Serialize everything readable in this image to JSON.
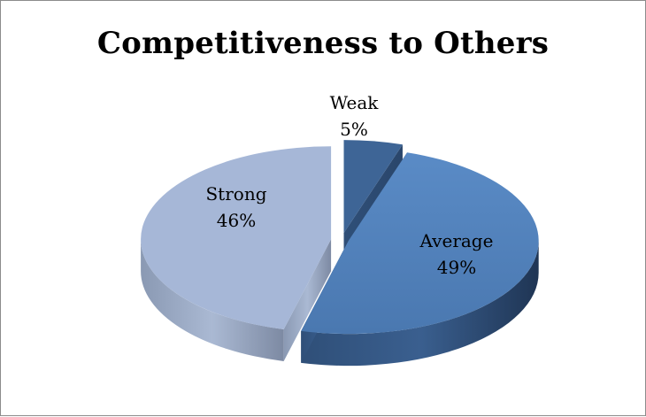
{
  "chart_data": {
    "type": "pie",
    "title": "Competitiveness to Others",
    "slices": [
      {
        "label": "Weak",
        "value": 5,
        "value_label": "5%",
        "color": "#4a6c9b"
      },
      {
        "label": "Average",
        "value": 49,
        "value_label": "49%",
        "color": "#4f81bd"
      },
      {
        "label": "Strong",
        "value": 46,
        "value_label": "46%",
        "color": "#a5b8d8"
      }
    ],
    "style": "3d-exploded"
  }
}
